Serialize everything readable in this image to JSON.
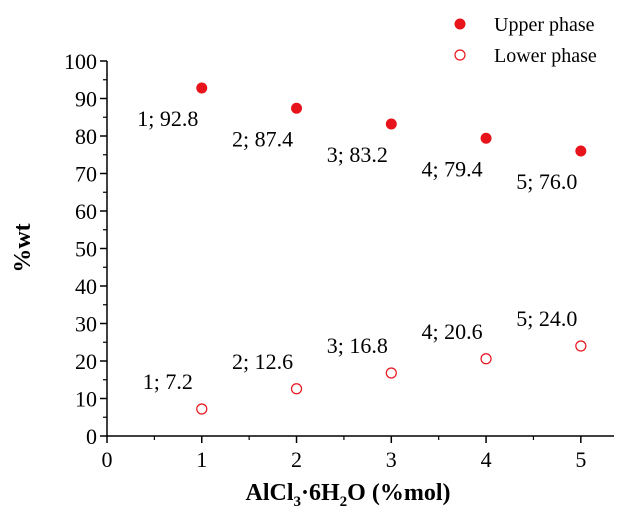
{
  "chart_data": {
    "type": "scatter",
    "title": "",
    "xlabel": "AlCl₃·6H₂O (%mol)",
    "ylabel": "%wt",
    "xlim": [
      0,
      5.35
    ],
    "ylim": [
      0,
      100
    ],
    "x_ticks": [
      "0",
      "1",
      "2",
      "3",
      "4",
      "5"
    ],
    "y_ticks": [
      "0",
      "10",
      "20",
      "30",
      "40",
      "50",
      "60",
      "70",
      "80",
      "90",
      "100"
    ],
    "legend_position": "top-right",
    "grid": false,
    "series": [
      {
        "name": "Upper phase",
        "marker": "filled-circle",
        "color": "#e8141c",
        "x": [
          1,
          2,
          3,
          4,
          5
        ],
        "y": [
          92.8,
          87.4,
          83.2,
          79.4,
          76.0
        ],
        "labels": [
          "1; 92.8",
          "2; 87.4",
          "3; 83.2",
          "4; 79.4",
          "5; 76.0"
        ]
      },
      {
        "name": "Lower phase",
        "marker": "open-circle",
        "color": "#e8141c",
        "x": [
          1,
          2,
          3,
          4,
          5
        ],
        "y": [
          7.2,
          12.6,
          16.8,
          20.6,
          24.0
        ],
        "labels": [
          "1; 7.2",
          "2; 12.6",
          "3; 16.8",
          "4; 20.6",
          "5; 24.0"
        ]
      }
    ]
  }
}
